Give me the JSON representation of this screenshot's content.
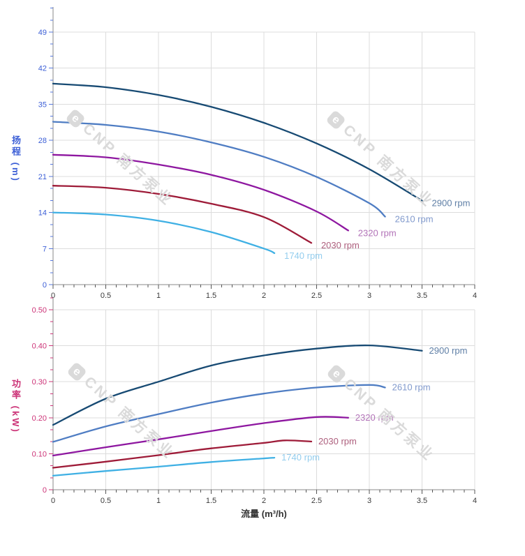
{
  "watermark": {
    "logo_text": "e",
    "text": "CNP 南方泵业",
    "color": "#dadada"
  },
  "chart_data": [
    {
      "type": "line",
      "title": "",
      "ylabel": "扬程 (m)",
      "xlabel": "",
      "xlim": [
        0,
        4
      ],
      "ylim": [
        0,
        49
      ],
      "grid": true,
      "legend_position": "end-of-line",
      "x_ticks": {
        "values": [
          0,
          0.5,
          1,
          1.5,
          2,
          2.5,
          3,
          3.5,
          4
        ],
        "labels": [
          "0",
          "0.5",
          "1",
          "1.5",
          "2",
          "2.5",
          "3",
          "3.5",
          "4"
        ],
        "minor_per_major": 5,
        "color": "#3a3a3a",
        "tick_color": "#555555"
      },
      "y_ticks": {
        "values": [
          0,
          7,
          14,
          21,
          28,
          35,
          42,
          49
        ],
        "labels": [
          "0",
          "7",
          "14",
          "21",
          "28",
          "35",
          "42",
          "49"
        ],
        "minor_per_major": 3,
        "color": "#3b5ed6",
        "tick_color": "#5577dd"
      },
      "series": [
        {
          "name": "2900 rpm",
          "color": "#174a73",
          "label_color": "#5f7fa6",
          "points": [
            [
              0,
              39.0
            ],
            [
              0.5,
              38.3
            ],
            [
              1,
              36.8
            ],
            [
              1.5,
              34.5
            ],
            [
              2,
              31.4
            ],
            [
              2.5,
              27.4
            ],
            [
              3,
              22.4
            ],
            [
              3.5,
              16.3
            ]
          ]
        },
        {
          "name": "2610 rpm",
          "color": "#4f7dc3",
          "label_color": "#8099cc",
          "points": [
            [
              0,
              31.6
            ],
            [
              0.5,
              31.0
            ],
            [
              1,
              29.7
            ],
            [
              1.5,
              27.6
            ],
            [
              2,
              24.8
            ],
            [
              2.5,
              20.9
            ],
            [
              3,
              15.8
            ],
            [
              3.15,
              13.2
            ]
          ]
        },
        {
          "name": "2320 rpm",
          "color": "#8e17a0",
          "label_color": "#b273b8",
          "points": [
            [
              0,
              25.2
            ],
            [
              0.5,
              24.7
            ],
            [
              1,
              23.3
            ],
            [
              1.5,
              21.3
            ],
            [
              2,
              18.4
            ],
            [
              2.5,
              14.2
            ],
            [
              2.8,
              10.5
            ]
          ]
        },
        {
          "name": "2030 rpm",
          "color": "#9e1b38",
          "label_color": "#ad5f7d",
          "points": [
            [
              0,
              19.2
            ],
            [
              0.5,
              18.8
            ],
            [
              1,
              17.6
            ],
            [
              1.5,
              15.7
            ],
            [
              2,
              13.1
            ],
            [
              2.45,
              8.1
            ]
          ]
        },
        {
          "name": "1740 rpm",
          "color": "#3fb0e4",
          "label_color": "#93cdee",
          "points": [
            [
              0,
              14.0
            ],
            [
              0.5,
              13.6
            ],
            [
              1,
              12.4
            ],
            [
              1.5,
              10.2
            ],
            [
              2,
              7.0
            ],
            [
              2.1,
              6.1
            ]
          ]
        }
      ]
    },
    {
      "type": "line",
      "title": "",
      "ylabel": "功率 (kW)",
      "xlabel": "流量 (m³/h)",
      "xlim": [
        0,
        4
      ],
      "ylim": [
        0,
        0.5
      ],
      "grid": true,
      "legend_position": "end-of-line",
      "x_ticks": {
        "values": [
          0,
          0.5,
          1,
          1.5,
          2,
          2.5,
          3,
          3.5,
          4
        ],
        "labels": [
          "0",
          "0.5",
          "1",
          "1.5",
          "2",
          "2.5",
          "3",
          "3.5",
          "4"
        ],
        "minor_per_major": 5,
        "color": "#3a3a3a",
        "tick_color": "#555555"
      },
      "y_ticks": {
        "values": [
          0,
          0.1,
          0.2,
          0.3,
          0.4,
          0.5
        ],
        "labels": [
          "0",
          "0.10",
          "0.20",
          "0.30",
          "0.40",
          "0.50"
        ],
        "minor_per_major": 3,
        "color": "#cc3377",
        "tick_color": "#cc3377"
      },
      "series": [
        {
          "name": "2900 rpm",
          "color": "#174a73",
          "label_color": "#5f7fa6",
          "points": [
            [
              0,
              0.18
            ],
            [
              0.5,
              0.253
            ],
            [
              1,
              0.3
            ],
            [
              1.5,
              0.345
            ],
            [
              2,
              0.373
            ],
            [
              2.5,
              0.392
            ],
            [
              3,
              0.401
            ],
            [
              3.5,
              0.386
            ]
          ]
        },
        {
          "name": "2610 rpm",
          "color": "#4f7dc3",
          "label_color": "#8099cc",
          "points": [
            [
              0,
              0.133
            ],
            [
              0.5,
              0.176
            ],
            [
              1,
              0.21
            ],
            [
              1.5,
              0.242
            ],
            [
              2,
              0.267
            ],
            [
              2.5,
              0.284
            ],
            [
              3,
              0.291
            ],
            [
              3.15,
              0.284
            ]
          ]
        },
        {
          "name": "2320 rpm",
          "color": "#8e17a0",
          "label_color": "#b273b8",
          "points": [
            [
              0,
              0.095
            ],
            [
              0.5,
              0.118
            ],
            [
              1,
              0.14
            ],
            [
              1.5,
              0.163
            ],
            [
              2,
              0.185
            ],
            [
              2.5,
              0.202
            ],
            [
              2.8,
              0.2
            ]
          ]
        },
        {
          "name": "2030 rpm",
          "color": "#9e1b38",
          "label_color": "#ad5f7d",
          "points": [
            [
              0,
              0.061
            ],
            [
              0.5,
              0.078
            ],
            [
              1,
              0.096
            ],
            [
              1.5,
              0.115
            ],
            [
              2,
              0.13
            ],
            [
              2.2,
              0.137
            ],
            [
              2.45,
              0.134
            ]
          ]
        },
        {
          "name": "1740 rpm",
          "color": "#3fb0e4",
          "label_color": "#93cdee",
          "points": [
            [
              0,
              0.039
            ],
            [
              0.5,
              0.052
            ],
            [
              1,
              0.064
            ],
            [
              1.5,
              0.077
            ],
            [
              2,
              0.087
            ],
            [
              2.1,
              0.089
            ]
          ]
        }
      ]
    }
  ]
}
